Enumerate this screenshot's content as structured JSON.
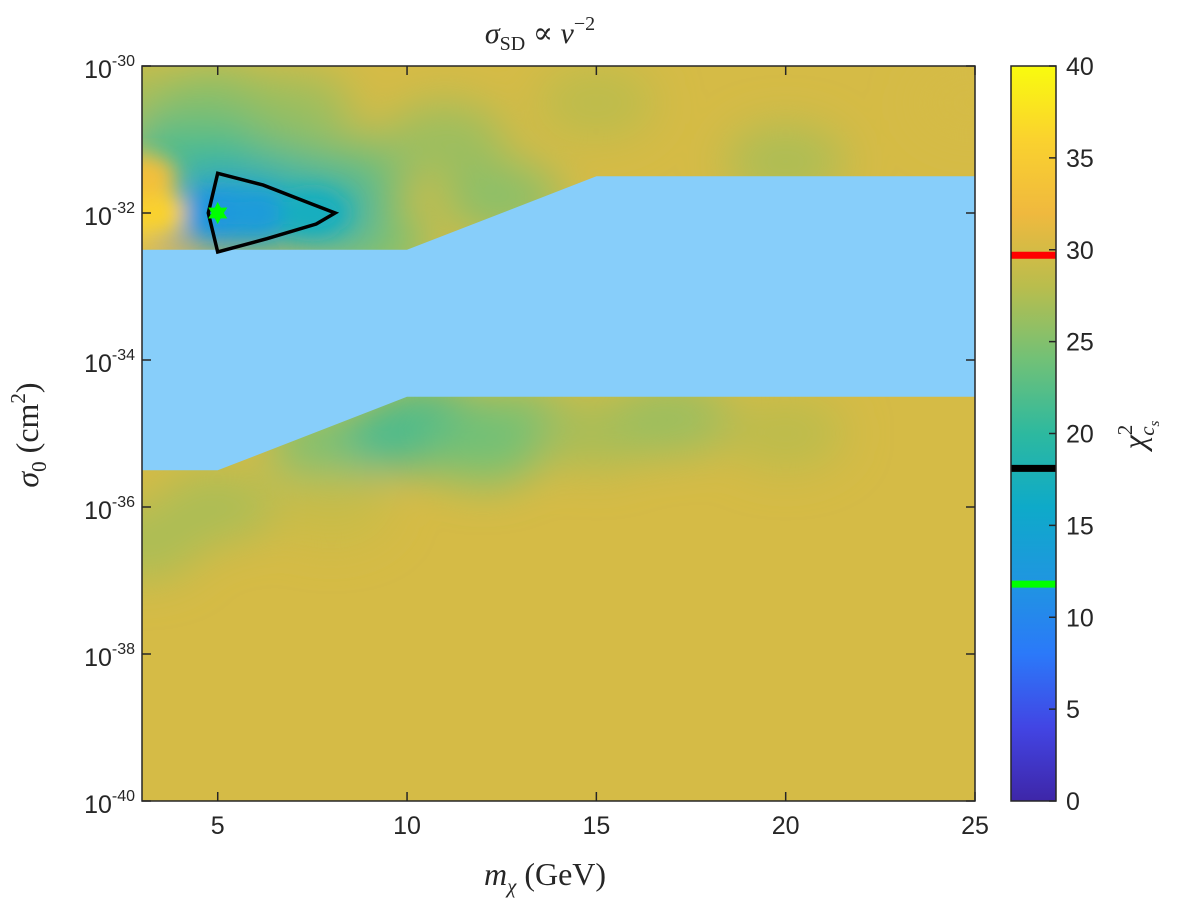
{
  "chart_data": {
    "type": "heatmap",
    "title": "σ_SD ∝ v^-2",
    "title_parts": {
      "sigma": "σ",
      "sub": "SD",
      "prop": " ∝ ",
      "v": "v",
      "sup": "−2"
    },
    "xlabel": "m_χ (GeV)",
    "xlabel_parts": {
      "m": "m",
      "sub": "χ",
      "unit": " (GeV)"
    },
    "ylabel": "σ_0 (cm^2)",
    "ylabel_parts": {
      "sigma": "σ",
      "sub": "0",
      "unit_open": " (cm",
      "sup": "2",
      "unit_close": ")"
    },
    "xlim": [
      3,
      25
    ],
    "ylim_log10": [
      -40,
      -30
    ],
    "y_scale": "log",
    "x_ticks": [
      5,
      10,
      15,
      20,
      25
    ],
    "x_tick_labels": [
      "5",
      "10",
      "15",
      "20",
      "25"
    ],
    "y_ticks_log10": [
      -40,
      -38,
      -36,
      -34,
      -32,
      -30
    ],
    "y_tick_base": "10",
    "y_tick_exponents": [
      "-40",
      "-38",
      "-36",
      "-34",
      "-32",
      "-30"
    ],
    "colorbar": {
      "label": "χ²_cs",
      "label_parts": {
        "chi": "χ",
        "sup": "2",
        "sub": "c",
        "subsub": "s"
      },
      "range": [
        0,
        40
      ],
      "ticks": [
        0,
        5,
        10,
        15,
        20,
        25,
        30,
        35,
        40
      ],
      "tick_labels": [
        "0",
        "5",
        "10",
        "15",
        "20",
        "25",
        "30",
        "35",
        "40"
      ],
      "colormap": "parula",
      "markers": [
        {
          "value": 29.7,
          "color": "#ff0000"
        },
        {
          "value": 18.1,
          "color": "#000000"
        },
        {
          "value": 11.8,
          "color": "#00ff00"
        }
      ]
    },
    "background_chi2": 30,
    "excluded_region": {
      "color": "#87cefa",
      "boundary": [
        {
          "x": 3,
          "y_log10": -32.5
        },
        {
          "x": 10,
          "y_log10": -32.5
        },
        {
          "x": 15,
          "y_log10": -31.5
        },
        {
          "x": 25,
          "y_log10": -31.5
        },
        {
          "x": 25,
          "y_log10": -34.5
        },
        {
          "x": 10,
          "y_log10": -34.5
        },
        {
          "x": 5,
          "y_log10": -35.5
        },
        {
          "x": 3,
          "y_log10": -35.5
        }
      ]
    },
    "contour": {
      "color": "#000000",
      "level": 18,
      "points": [
        {
          "x": 5.0,
          "y_log10": -31.46
        },
        {
          "x": 6.2,
          "y_log10": -31.62
        },
        {
          "x": 7.5,
          "y_log10": -31.88
        },
        {
          "x": 8.1,
          "y_log10": -32.0
        },
        {
          "x": 7.6,
          "y_log10": -32.15
        },
        {
          "x": 6.3,
          "y_log10": -32.35
        },
        {
          "x": 5.0,
          "y_log10": -32.53
        },
        {
          "x": 4.75,
          "y_log10": -32.0
        }
      ]
    },
    "best_fit": {
      "x": 5,
      "y_log10": -32,
      "color": "#00ff00",
      "marker": "hexagram"
    },
    "upper_region_values": [
      {
        "x": 3.0,
        "y_log10": -32.0,
        "chi2": 38
      },
      {
        "x": 3.3,
        "y_log10": -32.0,
        "chi2": 36
      },
      {
        "x": 3.0,
        "y_log10": -31.5,
        "chi2": 33
      },
      {
        "x": 3.8,
        "y_log10": -32.0,
        "chi2": 31
      },
      {
        "x": 3.0,
        "y_log10": -30.5,
        "chi2": 27
      },
      {
        "x": 3.8,
        "y_log10": -31.3,
        "chi2": 22
      },
      {
        "x": 4.5,
        "y_log10": -31.0,
        "chi2": 21
      },
      {
        "x": 5.0,
        "y_log10": -30.5,
        "chi2": 25
      },
      {
        "x": 6.0,
        "y_log10": -31.2,
        "chi2": 21
      },
      {
        "x": 7.0,
        "y_log10": -30.6,
        "chi2": 26
      },
      {
        "x": 8.5,
        "y_log10": -31.5,
        "chi2": 23
      },
      {
        "x": 9.0,
        "y_log10": -32.4,
        "chi2": 24
      },
      {
        "x": 11.0,
        "y_log10": -31.0,
        "chi2": 26
      },
      {
        "x": 12.5,
        "y_log10": -31.8,
        "chi2": 25
      },
      {
        "x": 15.0,
        "y_log10": -30.5,
        "chi2": 28
      },
      {
        "x": 20.0,
        "y_log10": -31.3,
        "chi2": 27
      },
      {
        "x": 25.0,
        "y_log10": -30.5,
        "chi2": 30
      },
      {
        "x": 5.0,
        "y_log10": -32.0,
        "chi2": 12
      },
      {
        "x": 6.0,
        "y_log10": -32.0,
        "chi2": 13
      },
      {
        "x": 7.5,
        "y_log10": -32.0,
        "chi2": 17
      }
    ],
    "lower_region_values": [
      {
        "x": 3.0,
        "y_log10": -36.5,
        "chi2": 27
      },
      {
        "x": 5.0,
        "y_log10": -36.0,
        "chi2": 27
      },
      {
        "x": 8.0,
        "y_log10": -35.2,
        "chi2": 24
      },
      {
        "x": 10.0,
        "y_log10": -35.0,
        "chi2": 20
      },
      {
        "x": 10.5,
        "y_log10": -34.8,
        "chi2": 22
      },
      {
        "x": 12.0,
        "y_log10": -35.2,
        "chi2": 24
      },
      {
        "x": 13.0,
        "y_log10": -34.9,
        "chi2": 24
      },
      {
        "x": 15.0,
        "y_log10": -35.0,
        "chi2": 27
      },
      {
        "x": 17.0,
        "y_log10": -34.8,
        "chi2": 26
      },
      {
        "x": 20.0,
        "y_log10": -35.0,
        "chi2": 28
      },
      {
        "x": 8.0,
        "y_log10": -36.0,
        "chi2": 29
      }
    ]
  }
}
